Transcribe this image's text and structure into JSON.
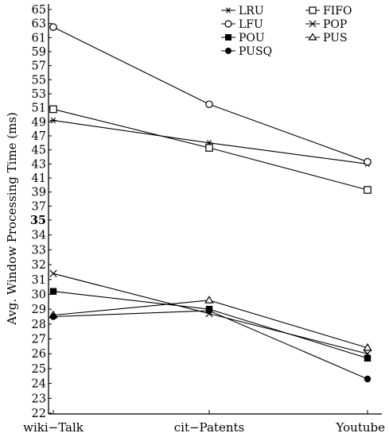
{
  "chart_data": {
    "type": "line",
    "ylabel": "Avg. Window Processing Time (ms)",
    "xlabel": "",
    "categories": [
      "wiki−Talk",
      "cit−Patents",
      "Youtube"
    ],
    "y_ticks": [
      "22",
      "23",
      "24",
      "25",
      "26",
      "27",
      "28",
      "29",
      "30",
      "31",
      "32",
      "33",
      "34",
      "35",
      "37",
      "39",
      "41",
      "43",
      "45",
      "47",
      "49",
      "51",
      "53",
      "55",
      "57",
      "59",
      "61",
      "63",
      "65"
    ],
    "grid": false,
    "legend_position": "top-right",
    "broken_axis": true,
    "series": [
      {
        "name": "LRU",
        "marker": "asterisk",
        "values": [
          49.2,
          46.0,
          43.0
        ]
      },
      {
        "name": "FIFO",
        "marker": "square-open",
        "values": [
          50.8,
          45.3,
          39.3
        ]
      },
      {
        "name": "LFU",
        "marker": "circle-open",
        "values": [
          62.5,
          51.5,
          43.3
        ]
      },
      {
        "name": "POP",
        "marker": "x",
        "values": [
          31.4,
          28.7,
          26.0
        ]
      },
      {
        "name": "POU",
        "marker": "square-filled",
        "values": [
          30.2,
          29.0,
          25.7
        ]
      },
      {
        "name": "PUS",
        "marker": "triangle-open",
        "values": [
          28.6,
          29.6,
          26.4
        ]
      },
      {
        "name": "PUSQ",
        "marker": "circle-filled",
        "values": [
          28.5,
          28.9,
          24.3
        ]
      }
    ]
  }
}
